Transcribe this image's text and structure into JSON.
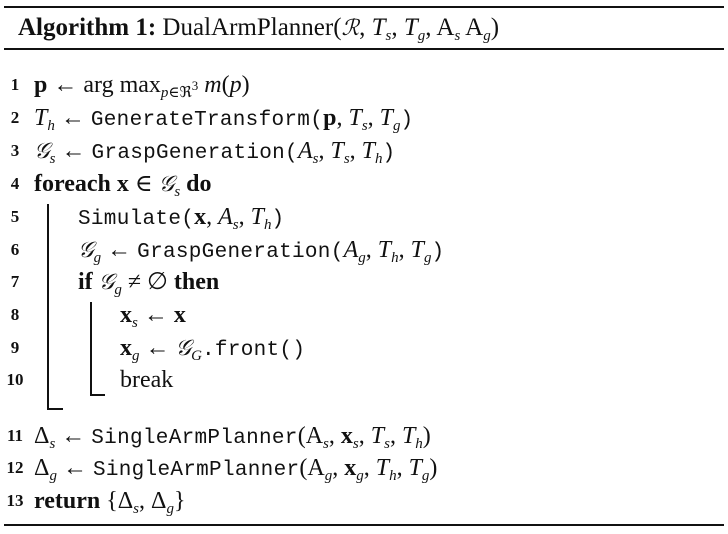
{
  "algorithm": {
    "label": "Algorithm 1:",
    "name": "DualArmPlanner",
    "params": "(ℛ, T_s, T_g, A_s A_g)"
  },
  "line_numbers": [
    "1",
    "2",
    "3",
    "4",
    "5",
    "6",
    "7",
    "8",
    "9",
    "10",
    "11",
    "12",
    "13"
  ],
  "keywords": {
    "foreach": "foreach",
    "do": "do",
    "if": "if",
    "then": "then",
    "return": "return",
    "break": "break"
  },
  "functions": {
    "generate_transform": "GenerateTransform",
    "grasp_generation": "GraspGeneration",
    "simulate": "Simulate",
    "front": ".front()",
    "single_arm_planner": "SingleArmPlanner"
  },
  "lines": [
    "p ← arg max_{p∈ℜ³} m(p)",
    "T_h ← GenerateTransform(p, T_s, T_g)",
    "𝒢_s ← GraspGeneration(A_s, T_s, T_h)",
    "foreach x ∈ 𝒢_s do",
    "Simulate(x, A_s, T_h)",
    "𝒢_g ← GraspGeneration(A_g, T_h, T_g)",
    "if 𝒢_g ≠ ∅ then",
    "x_s ← x",
    "x_g ← 𝒢_G.front()",
    "break",
    "Δ_s ← SingleArmPlanner(A_s, x_s, T_s, T_h)",
    "Δ_g ← SingleArmPlanner(A_g, x_g, T_h, T_g)",
    "return {Δ_s, Δ_g}"
  ]
}
